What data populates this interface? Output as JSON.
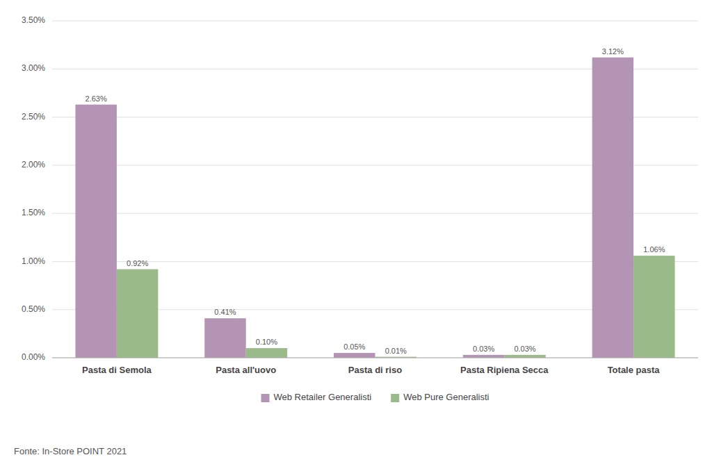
{
  "chart_data": {
    "type": "bar",
    "categories": [
      "Pasta di Semola",
      "Pasta all'uovo",
      "Pasta di riso",
      "Pasta Ripiena Secca",
      "Totale pasta"
    ],
    "series": [
      {
        "name": "Web Retailer Generalisti",
        "color": "#b394b4",
        "values": [
          2.63,
          0.41,
          0.05,
          0.03,
          3.12
        ],
        "value_labels": [
          "2.63%",
          "0.41%",
          "0.05%",
          "0.03%",
          "3.12%"
        ]
      },
      {
        "name": "Web Pure Generalisti",
        "color": "#9aba8a",
        "values": [
          0.92,
          0.1,
          0.01,
          0.03,
          1.06
        ],
        "value_labels": [
          "0.92%",
          "0.10%",
          "0.01%",
          "0.03%",
          "1.06%"
        ]
      }
    ],
    "ylim": [
      0,
      3.5
    ],
    "yticks": [
      {
        "value": 0.0,
        "label": "0.00%"
      },
      {
        "value": 0.5,
        "label": "0.50%"
      },
      {
        "value": 1.0,
        "label": "1.00%"
      },
      {
        "value": 1.5,
        "label": "1.50%"
      },
      {
        "value": 2.0,
        "label": "2.00%"
      },
      {
        "value": 2.5,
        "label": "2.50%"
      },
      {
        "value": 3.0,
        "label": "3.00%"
      },
      {
        "value": 3.5,
        "label": "3.50%"
      }
    ],
    "grid": true,
    "legend": "bottom",
    "data_labels": true,
    "annotations": [
      "Fonte: In-Store POINT 2021"
    ]
  }
}
